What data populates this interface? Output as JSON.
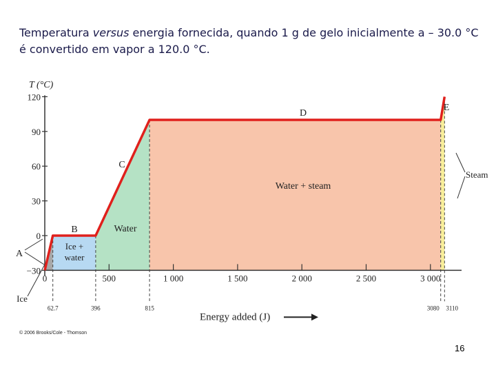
{
  "slide": {
    "title_part1": "Temperatura ",
    "title_italic": "versus",
    "title_part2": " energia fornecida, quando 1 g de gelo inicialmente a – 30.0 °C é convertido em vapor a 120.0 °C.",
    "copyright": "© 2006 Brooks/Cole - Thomson",
    "page_number": "16"
  },
  "chart_data": {
    "type": "line",
    "title": "",
    "xlabel": "Energy added (J)",
    "ylabel": "T (°C)",
    "xlim": [
      0,
      3140
    ],
    "ylim": [
      -30,
      120
    ],
    "yticks": [
      -30,
      0,
      30,
      60,
      90,
      120
    ],
    "yticklabels": [
      "−30",
      "0",
      "30",
      "60",
      "90",
      "120"
    ],
    "xticks": [
      0,
      500,
      1000,
      1500,
      2000,
      2500,
      3000
    ],
    "xticklabels": [
      "0",
      "500",
      "1 000",
      "1 500",
      "2 000",
      "2 500",
      "3 000"
    ],
    "phase_boundaries": [
      62.7,
      396,
      815,
      3080,
      3110
    ],
    "phase_boundary_labels": [
      "62.7",
      "396",
      "815",
      "3080",
      "3110"
    ],
    "series": [
      {
        "x": [
          0,
          62.7,
          396,
          815,
          3080,
          3110
        ],
        "y": [
          -30,
          0,
          0,
          100,
          100,
          120
        ]
      }
    ],
    "regions": [
      {
        "label": "Ice",
        "x0": 0,
        "x1": 62.7,
        "color": "#a8a8a8"
      },
      {
        "label": "Ice + water",
        "x0": 62.7,
        "x1": 396,
        "color": "#b7d9f2"
      },
      {
        "label": "Water",
        "x0": 396,
        "x1": 815,
        "color": "#b5e2c5"
      },
      {
        "label": "Water + steam",
        "x0": 815,
        "x1": 3080,
        "color": "#f8c5ab"
      },
      {
        "label": "Steam",
        "x0": 3080,
        "x1": 3110,
        "color": "#f8ee9a"
      }
    ],
    "segment_labels": [
      "A",
      "B",
      "C",
      "D",
      "E"
    ],
    "line_color": "#e0201c",
    "grid": false
  }
}
